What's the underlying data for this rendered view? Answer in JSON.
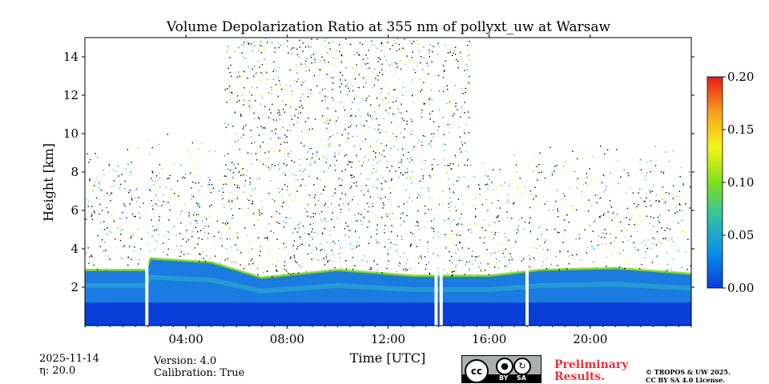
{
  "chart_data": {
    "type": "heatmap",
    "title": "Volume Depolarization Ratio at 355 nm of pollyxt_uw at Warsaw",
    "xlabel": "Time [UTC]",
    "ylabel": "Height [km]",
    "xlim_hours": [
      0.0,
      24.0
    ],
    "ylim_km": [
      0.0,
      15.0
    ],
    "x_ticks": [
      {
        "hour": 4,
        "label": "04:00"
      },
      {
        "hour": 8,
        "label": "08:00"
      },
      {
        "hour": 12,
        "label": "12:00"
      },
      {
        "hour": 16,
        "label": "16:00"
      },
      {
        "hour": 20,
        "label": "20:00"
      }
    ],
    "y_ticks": [
      {
        "value": 2,
        "label": "2"
      },
      {
        "value": 4,
        "label": "4"
      },
      {
        "value": 6,
        "label": "6"
      },
      {
        "value": 8,
        "label": "8"
      },
      {
        "value": 10,
        "label": "10"
      },
      {
        "value": 12,
        "label": "12"
      },
      {
        "value": 14,
        "label": "14"
      }
    ],
    "colorbar": {
      "range": [
        0.0,
        0.2
      ],
      "ticks": [
        "0.00",
        "0.05",
        "0.10",
        "0.15",
        "0.20"
      ],
      "colors": [
        "#0a3cd8",
        "#0a8ee8",
        "#2fc1a8",
        "#7ee01e",
        "#f4f41a",
        "#f4a21a",
        "#e81a1a"
      ]
    },
    "boundary_layer_top_km": [
      {
        "hour": 0.0,
        "value": 2.9
      },
      {
        "hour": 2.4,
        "value": 2.9
      },
      {
        "hour": 2.6,
        "value": 3.5
      },
      {
        "hour": 5.0,
        "value": 3.3
      },
      {
        "hour": 7.0,
        "value": 2.5
      },
      {
        "hour": 10.0,
        "value": 2.9
      },
      {
        "hour": 13.0,
        "value": 2.6
      },
      {
        "hour": 16.0,
        "value": 2.6
      },
      {
        "hour": 18.0,
        "value": 2.9
      },
      {
        "hour": 21.0,
        "value": 3.0
      },
      {
        "hour": 24.0,
        "value": 2.7
      }
    ],
    "no_data_gaps_hours": [
      2.45,
      13.9,
      14.1,
      17.5
    ]
  },
  "footer": {
    "date": "2025-11-14",
    "eta": "η: 20.0",
    "version": "Version: 4.0",
    "calibration": "Calibration: True",
    "preliminary_line1": "Preliminary",
    "preliminary_line2": "Results.",
    "copyright_line1": "© TROPOS & UW 2025.",
    "copyright_line2": "CC BY SA 4.0 License.",
    "license_badge": {
      "cc": "cc",
      "by": "BY",
      "sa": "SA"
    }
  }
}
